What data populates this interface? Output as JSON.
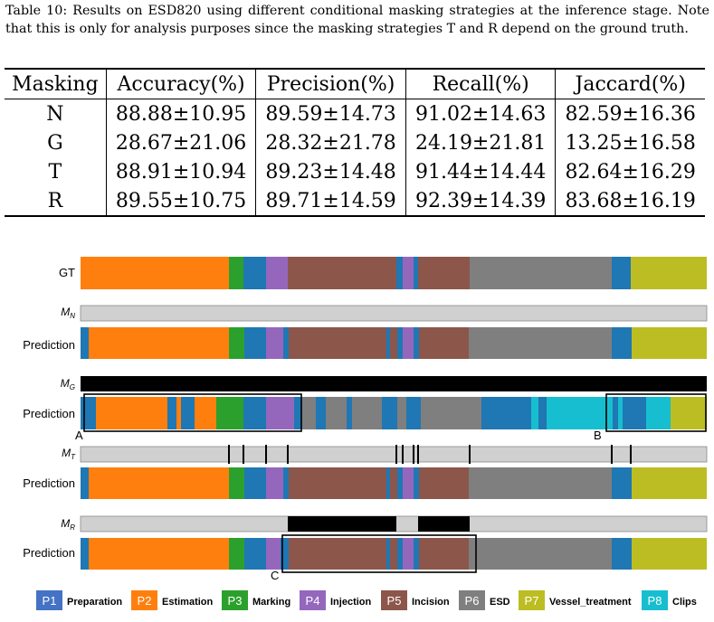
{
  "caption": "Table 10: Results on ESD820 using different conditional masking strategies at the inference stage. Note that this is only for analysis purposes since the masking strategies T and R depend on the ground truth.",
  "table": {
    "headers": [
      "Masking",
      "Accuracy(%)",
      "Precision(%)",
      "Recall(%)",
      "Jaccard(%)"
    ],
    "rows": [
      [
        "N",
        "88.88±10.95",
        "89.59±14.73",
        "91.02±14.63",
        "82.59±16.36"
      ],
      [
        "G",
        "28.67±21.06",
        "28.32±21.78",
        "24.19±21.81",
        "13.25±16.58"
      ],
      [
        "T",
        "88.91±10.94",
        "89.23±14.48",
        "91.44±14.44",
        "82.64±16.29"
      ],
      [
        "R",
        "89.55±10.75",
        "89.71±14.59",
        "92.39±14.39",
        "83.68±16.19"
      ]
    ]
  },
  "figure": {
    "row_labels": [
      "GT",
      "M",
      "Prediction",
      "M",
      "Prediction",
      "M",
      "Prediction",
      "M",
      "Prediction"
    ],
    "mask_subscripts": [
      "N",
      "G",
      "T",
      "R"
    ],
    "box_labels": [
      "A",
      "B",
      "C"
    ],
    "phase_colors": {
      "P1": "#1f77b4",
      "P2": "#ff7f0e",
      "P3": "#2ca02c",
      "P4": "#9467bd",
      "P5": "#8c564b",
      "P6": "#7f7f7f",
      "P7": "#bcbd22",
      "P8": "#17becf",
      "mask_off": "#d0d0d0",
      "mask_on": "#000000"
    },
    "legend": [
      {
        "code": "P1",
        "name": "Preparation"
      },
      {
        "code": "P2",
        "name": "Estimation"
      },
      {
        "code": "P3",
        "name": "Marking"
      },
      {
        "code": "P4",
        "name": "Injection"
      },
      {
        "code": "P5",
        "name": "Incision"
      },
      {
        "code": "P6",
        "name": "ESD"
      },
      {
        "code": "P7",
        "name": "Vessel_treatment"
      },
      {
        "code": "P8",
        "name": "Clips"
      }
    ]
  }
}
